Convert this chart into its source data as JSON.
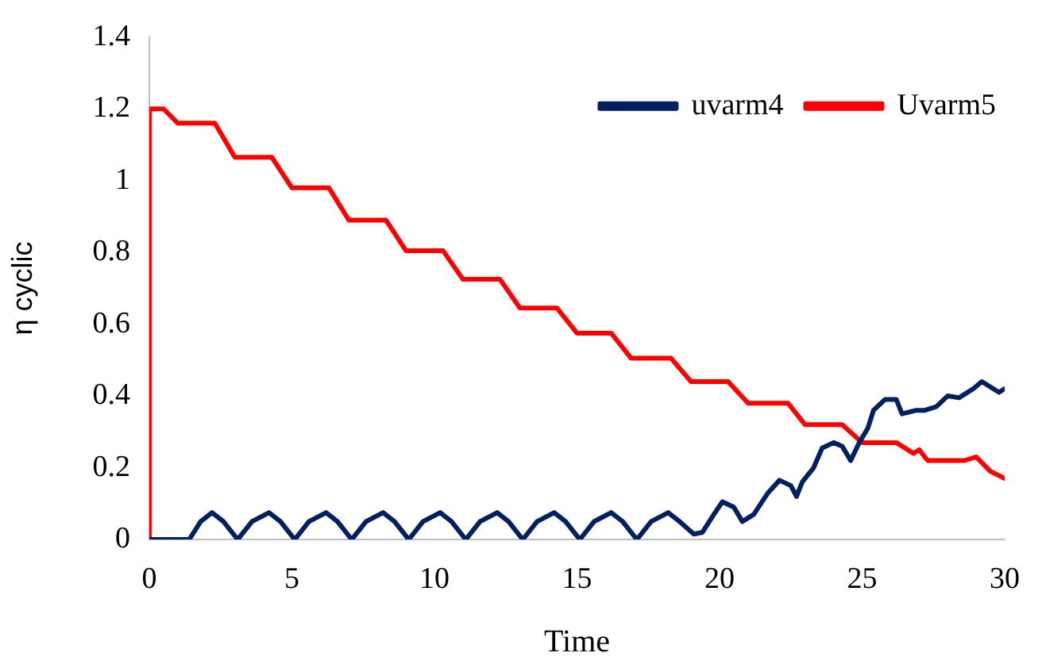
{
  "chart_data": {
    "type": "line",
    "xlabel": "Time",
    "ylabel": "η cyclic",
    "xlim": [
      0,
      30
    ],
    "xticks": [
      0,
      5,
      10,
      15,
      20,
      25,
      30
    ],
    "ylim": [
      0,
      1.4
    ],
    "yticks": [
      0,
      0.2,
      0.4,
      0.6,
      0.8,
      1,
      1.2,
      1.4
    ],
    "grid": false,
    "legend": "top right",
    "marker": "none",
    "line_style": "solid",
    "series": [
      {
        "name": "uvarm4",
        "color": "#002060",
        "x": [
          0,
          1.4,
          1.8,
          2.2,
          2.6,
          3.1,
          3.6,
          4.2,
          4.6,
          5.1,
          5.6,
          6.2,
          6.6,
          7.1,
          7.6,
          8.2,
          8.6,
          9.1,
          9.6,
          10.2,
          10.6,
          11.1,
          11.6,
          12.2,
          12.6,
          13.1,
          13.6,
          14.2,
          14.6,
          15.1,
          15.6,
          16.2,
          16.6,
          17.1,
          17.6,
          18.2,
          18.6,
          19.1,
          19.4,
          19.8,
          20.1,
          20.5,
          20.8,
          21.2,
          21.7,
          22.1,
          22.5,
          22.7,
          22.9,
          23.3,
          23.6,
          24,
          24.3,
          24.6,
          24.9,
          25.2,
          25.4,
          25.8,
          26.2,
          26.4,
          26.9,
          27.2,
          27.6,
          28,
          28.4,
          28.9,
          29.2,
          29.6,
          29.8,
          30
        ],
        "values": [
          0,
          0,
          0.05,
          0.075,
          0.05,
          0,
          0.05,
          0.075,
          0.05,
          0,
          0.05,
          0.075,
          0.05,
          0,
          0.05,
          0.075,
          0.05,
          0,
          0.05,
          0.075,
          0.05,
          0,
          0.05,
          0.075,
          0.05,
          0,
          0.05,
          0.075,
          0.05,
          0,
          0.05,
          0.075,
          0.05,
          0,
          0.05,
          0.075,
          0.05,
          0.015,
          0.02,
          0.07,
          0.105,
          0.09,
          0.05,
          0.07,
          0.13,
          0.165,
          0.15,
          0.12,
          0.16,
          0.2,
          0.255,
          0.27,
          0.26,
          0.22,
          0.27,
          0.31,
          0.36,
          0.39,
          0.39,
          0.35,
          0.36,
          0.36,
          0.37,
          0.4,
          0.395,
          0.42,
          0.44,
          0.42,
          0.41,
          0.42
        ]
      },
      {
        "name": "Uvarm5",
        "color": "#ff0000",
        "x": [
          0,
          0,
          0.5,
          1,
          2.3,
          3,
          4.3,
          5,
          6.3,
          7,
          8.3,
          9,
          10.3,
          11,
          12.3,
          13,
          14.3,
          15,
          16.2,
          16.9,
          18.3,
          19,
          20.3,
          21,
          22.4,
          23,
          24.3,
          25,
          26.2,
          26.8,
          27,
          27.3,
          28.6,
          29,
          29.5,
          30
        ],
        "values": [
          0,
          1.2,
          1.2,
          1.16,
          1.16,
          1.065,
          1.065,
          0.98,
          0.98,
          0.89,
          0.89,
          0.805,
          0.805,
          0.725,
          0.725,
          0.645,
          0.645,
          0.575,
          0.575,
          0.505,
          0.505,
          0.44,
          0.44,
          0.38,
          0.38,
          0.32,
          0.32,
          0.27,
          0.27,
          0.24,
          0.25,
          0.22,
          0.22,
          0.23,
          0.19,
          0.17
        ]
      }
    ]
  }
}
